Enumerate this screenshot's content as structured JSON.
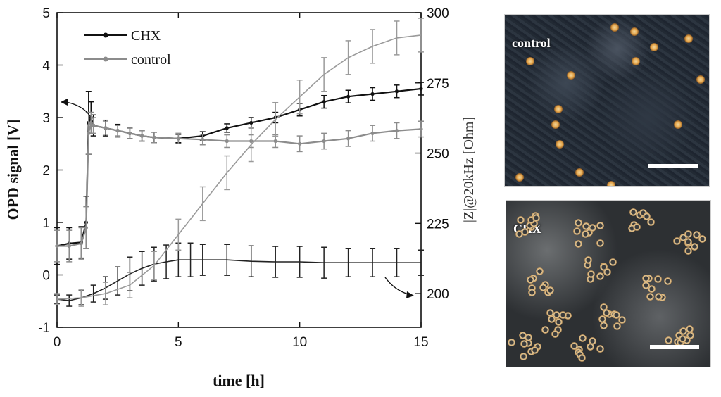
{
  "chart_data": {
    "type": "line",
    "xlabel": "time [h]",
    "ylabel_left": "OPD signal [V]",
    "ylabel_right": "|Z|@20kHz [Ohm]",
    "xlim": [
      0,
      15
    ],
    "ylim_left": [
      -1,
      5
    ],
    "ylim_right": [
      188,
      300
    ],
    "x_ticks": [
      "0",
      "5",
      "10",
      "15"
    ],
    "y_ticks_left": [
      "-1",
      "0",
      "1",
      "2",
      "3",
      "4",
      "5"
    ],
    "y_ticks_right": [
      "200",
      "225",
      "250",
      "275",
      "300"
    ],
    "legend": [
      {
        "name": "CHX",
        "color": "#111111"
      },
      {
        "name": "control",
        "color": "#8c8c8c"
      }
    ],
    "series": [
      {
        "name": "CHX",
        "kind": "OPD",
        "axis": "left",
        "color": "#111111",
        "x": [
          0,
          0.5,
          1.0,
          1.2,
          1.3,
          1.4,
          1.5,
          2,
          2.5,
          3,
          3.5,
          4,
          5,
          6,
          7,
          8,
          9,
          10,
          11,
          12,
          13,
          14,
          15
        ],
        "y": [
          0.55,
          0.6,
          0.62,
          1.0,
          2.9,
          3.0,
          2.85,
          2.8,
          2.75,
          2.7,
          2.65,
          2.62,
          2.6,
          2.65,
          2.8,
          2.9,
          3.0,
          3.15,
          3.3,
          3.4,
          3.45,
          3.5,
          3.55
        ],
        "err": [
          0.35,
          0.3,
          0.3,
          0.5,
          0.6,
          0.3,
          0.2,
          0.15,
          0.12,
          0.1,
          0.1,
          0.1,
          0.08,
          0.08,
          0.08,
          0.1,
          0.1,
          0.12,
          0.12,
          0.12,
          0.12,
          0.12,
          0.12
        ]
      },
      {
        "name": "control",
        "kind": "OPD",
        "axis": "left",
        "color": "#8c8c8c",
        "x": [
          0,
          0.5,
          1.0,
          1.2,
          1.3,
          1.4,
          1.5,
          2,
          2.5,
          3,
          3.5,
          4,
          5,
          6,
          7,
          8,
          9,
          10,
          11,
          12,
          13,
          14,
          15
        ],
        "y": [
          0.55,
          0.55,
          0.6,
          0.9,
          2.7,
          2.9,
          2.85,
          2.8,
          2.75,
          2.7,
          2.65,
          2.62,
          2.6,
          2.58,
          2.55,
          2.55,
          2.55,
          2.5,
          2.55,
          2.6,
          2.7,
          2.75,
          2.78
        ],
        "err": [
          0.3,
          0.3,
          0.3,
          0.4,
          0.4,
          0.2,
          0.15,
          0.12,
          0.1,
          0.1,
          0.1,
          0.1,
          0.1,
          0.1,
          0.12,
          0.12,
          0.12,
          0.15,
          0.15,
          0.15,
          0.15,
          0.15,
          0.15
        ]
      },
      {
        "name": "CHX",
        "kind": "impedance",
        "axis": "right",
        "color": "#222222",
        "x": [
          0,
          0.5,
          1,
          1.5,
          2,
          2.5,
          3,
          3.5,
          4,
          4.5,
          5,
          5.5,
          6,
          7,
          8,
          9,
          10,
          11,
          12,
          13,
          14,
          15
        ],
        "y": [
          198,
          197.5,
          198.5,
          200,
          202,
          204.5,
          207,
          209,
          210.5,
          211.3,
          212,
          212,
          212,
          212,
          211.5,
          211.3,
          211.3,
          211,
          211,
          211,
          211,
          211
        ],
        "err": [
          1.5,
          2,
          2.5,
          3,
          4,
          5,
          6,
          6,
          6,
          6,
          6,
          6,
          5.5,
          5.5,
          5.5,
          5.5,
          5.5,
          5.5,
          5,
          5,
          5,
          4.5
        ]
      },
      {
        "name": "control",
        "kind": "impedance",
        "axis": "right",
        "color": "#9a9a9a",
        "x": [
          0,
          1,
          2,
          3,
          4,
          5,
          6,
          7,
          8,
          9,
          10,
          11,
          12,
          13,
          14,
          15
        ],
        "y": [
          198,
          198.5,
          200,
          203,
          210,
          221,
          232,
          243,
          253,
          262,
          270,
          278,
          284,
          288,
          291,
          292
        ],
        "err": [
          2,
          3,
          4,
          4.5,
          5,
          5.5,
          6,
          6,
          6,
          6,
          6,
          6,
          6,
          6,
          6,
          6
        ]
      }
    ]
  },
  "micrographs": {
    "control_label": "control",
    "chx_label": "CHX"
  }
}
